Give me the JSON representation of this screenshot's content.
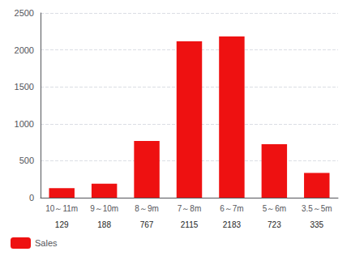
{
  "chart_data": {
    "type": "bar",
    "categories": [
      "10～11m",
      "9～10m",
      "8～9m",
      "7～8m",
      "6～7m",
      "5～6m",
      "3.5～5m"
    ],
    "series": [
      {
        "name": "Sales",
        "color": "#ee1111",
        "values": [
          129,
          188,
          767,
          2115,
          2183,
          723,
          335
        ]
      }
    ],
    "ylim": [
      0,
      2500
    ],
    "yticks": [
      0,
      500,
      1000,
      1500,
      2000,
      2500
    ],
    "grid": true,
    "legend": "bottom left"
  }
}
